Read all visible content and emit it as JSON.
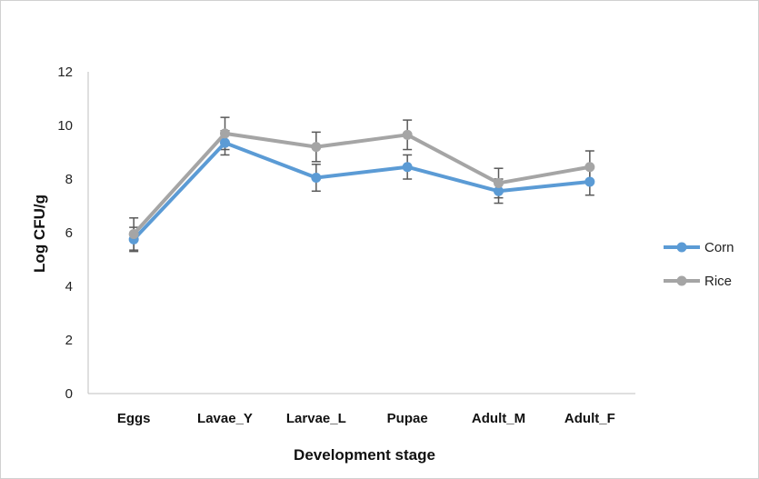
{
  "chart_data": {
    "type": "line",
    "categories": [
      "Eggs",
      "Lavae_Y",
      "Larvae_L",
      "Pupae",
      "Adult_M",
      "Adult_F"
    ],
    "series": [
      {
        "name": "Corn",
        "color": "#5b9bd5",
        "values": [
          5.75,
          9.35,
          8.05,
          8.45,
          7.55,
          7.9
        ],
        "error": [
          0.45,
          0.45,
          0.5,
          0.45,
          0.45,
          0.5
        ]
      },
      {
        "name": "Rice",
        "color": "#a5a5a5",
        "values": [
          5.95,
          9.7,
          9.2,
          9.65,
          7.85,
          8.45
        ],
        "error": [
          0.6,
          0.6,
          0.55,
          0.55,
          0.55,
          0.6
        ]
      }
    ],
    "xlabel": "Development stage",
    "ylabel": "Log CFU/g",
    "ylim": [
      0,
      12
    ],
    "yticks": [
      0,
      2,
      4,
      6,
      8,
      10,
      12
    ],
    "grid": false,
    "legend_position": "right"
  }
}
